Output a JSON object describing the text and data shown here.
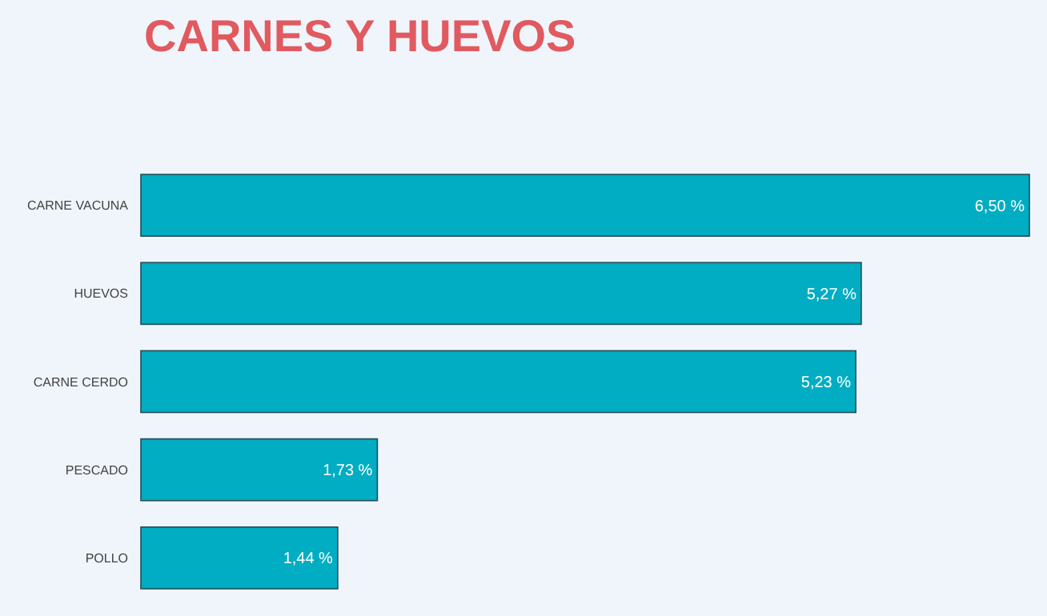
{
  "chart_data": {
    "type": "bar",
    "orientation": "horizontal",
    "title": "CARNES Y HUEVOS",
    "categories": [
      "CARNE VACUNA",
      "HUEVOS",
      "CARNE CERDO",
      "PESCADO",
      "POLLO"
    ],
    "values": [
      6.5,
      5.27,
      5.23,
      1.73,
      1.44
    ],
    "value_labels": [
      "6,50 %",
      "5,27 %",
      "5,23 %",
      "1,73 %",
      "1,44 %"
    ],
    "color": "#00adc2"
  }
}
